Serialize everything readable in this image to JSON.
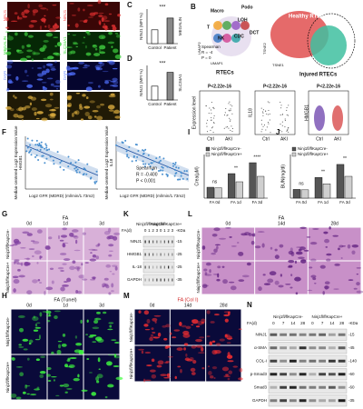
{
  "panel_labels": {
    "B": "B",
    "C": "C",
    "D": "D",
    "F": "F",
    "G": "G",
    "H": "H",
    "I": "I",
    "J": "J",
    "K": "K",
    "L": "L",
    "M": "M",
    "N": "N"
  },
  "A": {
    "col1": [
      "NINJ1",
      "MEGALIN",
      "DAPI",
      "Merge"
    ],
    "col2": [
      "NINJ1",
      "SLC34A1",
      "DAPI",
      "Merge"
    ]
  },
  "C": {
    "ylabel": "NINJ1 (MFI %)",
    "marker": "MEGALIN",
    "sig": "***",
    "categories": [
      "Control",
      "Patient"
    ],
    "values": [
      100,
      185
    ],
    "ylim": [
      0,
      250
    ]
  },
  "D": {
    "ylabel": "NINJ1 (MFI %)",
    "marker": "SLC34A1",
    "sig": "***",
    "categories": [
      "Control",
      "Patient"
    ],
    "values": [
      100,
      200
    ],
    "ylim": [
      0,
      250
    ]
  },
  "B": {
    "clusters": [
      "Macro",
      "LOH",
      "Podo",
      "NK",
      "T",
      "CDC",
      "DCT"
    ],
    "umap_x": "UMAP1",
    "umap_y": "UMAP2",
    "group": "RTECs",
    "healthy": "Healthy RTECs",
    "injured": "Injured RTECs",
    "target": "Injured RTECs",
    "tsne_x": "TSNE1",
    "tsne_y": "TSNE2",
    "stats": [
      "Spearman",
      "R = -4",
      "P = 0"
    ]
  },
  "violins": {
    "p": [
      "P<2.22e-16",
      "P<2.22e-16",
      "P<2.22e-16"
    ],
    "ylabel": "Expression level",
    "genes": [
      "IL18",
      "HMGB1"
    ],
    "groups": [
      "Ctrl",
      "AKI",
      "Ctrl",
      "AKI",
      "Ctrl",
      "AKI"
    ]
  },
  "F": {
    "ylabel": "Median-centered Log2 Expression Value",
    "genes": [
      "HMGB1",
      "IL18"
    ],
    "xlabel": "Log2 GFR (MDRD) (ml/min/1.73m2)",
    "stats": [
      "Spearman",
      "R = -0.400",
      "P < 0.001"
    ]
  },
  "I": {
    "ylabel": "Crea(μM)",
    "categories": [
      "FA 0d",
      "FA 1d",
      "FA 3d"
    ],
    "ylim": [
      0,
      80
    ],
    "sig": [
      "ns",
      "**",
      "****"
    ],
    "series": [
      {
        "name": "Ninj1fl/flKapCre-",
        "color": "#555555",
        "values": [
          20,
          45,
          65
        ]
      },
      {
        "name": "Ninj1fl/flKapCre+",
        "color": "#cfcfcf",
        "values": [
          19,
          30,
          40
        ]
      }
    ]
  },
  "J": {
    "ylabel": "BUN(mg/dl)",
    "categories": [
      "FA 0d",
      "FA 1d",
      "FA 3d"
    ],
    "ylim": [
      0,
      110
    ],
    "sig": [
      "ns",
      "**",
      "**"
    ],
    "series": [
      {
        "name": "Ninj1fl/flKapCre-",
        "color": "#555555",
        "values": [
          22,
          52,
          85
        ]
      },
      {
        "name": "Ninj1fl/flKapCre+",
        "color": "#cfcfcf",
        "values": [
          21,
          36,
          55
        ]
      }
    ]
  },
  "G": {
    "title": "FA",
    "days": [
      "0d",
      "1d",
      "3d"
    ],
    "rows": [
      "Ninj1fl/flKapCre-",
      "Ninj1fl/flKapCre+"
    ]
  },
  "K": {
    "fa": "FA(d)",
    "days": [
      "0",
      "1",
      "2",
      "3",
      "0",
      "1",
      "2",
      "3"
    ],
    "groups": [
      "Ninj1fl/flKapCre-",
      "Ninj1fl/flKapCre+"
    ],
    "proteins": [
      "NINJ1",
      "HMGB1",
      "IL-18",
      "GAPDH"
    ],
    "kda": [
      "-15",
      "-25",
      "-25",
      "-35"
    ],
    "kda_title": "-KDa"
  },
  "L": {
    "title": "FA",
    "days": [
      "0d",
      "14d",
      "28d"
    ],
    "rows": [
      "Ninj1fl/flKapCre-",
      "Ninj1fl/flKapCre+"
    ]
  },
  "H": {
    "title": "FA (Tunel)",
    "days": [
      "0d",
      "1d",
      "3d"
    ],
    "rows": [
      "Ninj1fl/flKapCre-",
      "Ninj1fl/flKapCre+"
    ]
  },
  "M": {
    "title": "FA (Col I)",
    "days": [
      "0d",
      "14d",
      "28d"
    ],
    "rows": [
      "Ninj1fl/flKapCre-",
      "Ninj1fl/flKapCre+"
    ]
  },
  "N": {
    "fa": "FA(d)",
    "days": [
      "0",
      "7",
      "14",
      "28",
      "0",
      "7",
      "14",
      "28"
    ],
    "groups": [
      "Ninj1fl/flKapCre-",
      "Ninj1fl/flKapCre+"
    ],
    "proteins": [
      "NINJ1",
      "α-SMA",
      "COL-I",
      "p-Smad3",
      "Smad3",
      "GAPDH"
    ],
    "kda": [
      "-15",
      "-45",
      "-140",
      "-60",
      "-60",
      "-35"
    ],
    "kda_title": "-KDa"
  }
}
